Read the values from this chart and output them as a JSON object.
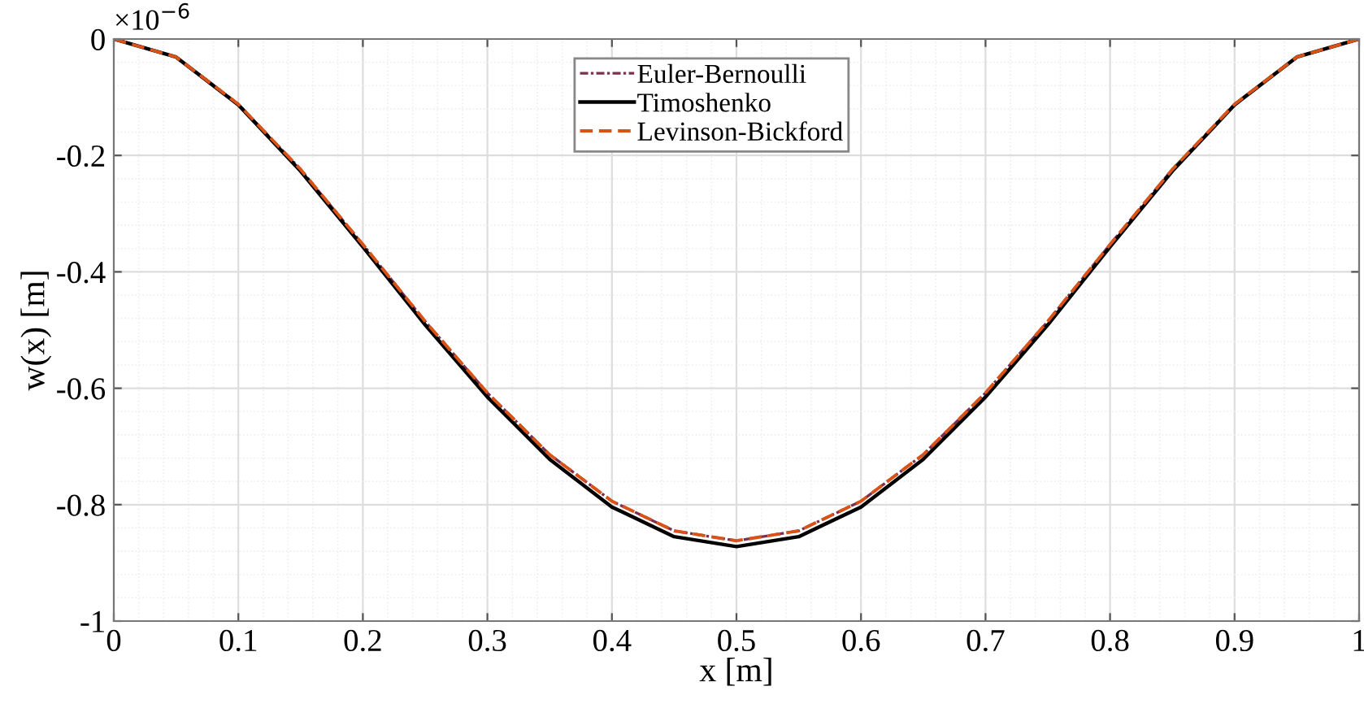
{
  "chart_data": {
    "type": "line",
    "xlabel": "x [m]",
    "ylabel": "w(x) [m]",
    "annotations": [
      "×10$^{−6}$"
    ],
    "x": [
      0,
      0.05,
      0.1,
      0.15,
      0.2,
      0.25,
      0.3,
      0.35,
      0.4,
      0.45,
      0.5,
      0.55,
      0.6,
      0.65,
      0.7,
      0.75,
      0.8,
      0.85,
      0.9,
      0.95,
      1
    ],
    "series": [
      {
        "name": "Euler-Bernoulli",
        "color": "#7e2f4e",
        "line_style": "dashdot",
        "values": [
          0,
          -0.031,
          -0.112,
          -0.224,
          -0.353,
          -0.485,
          -0.608,
          -0.714,
          -0.794,
          -0.845,
          -0.862,
          -0.845,
          -0.794,
          -0.714,
          -0.608,
          -0.485,
          -0.353,
          -0.224,
          -0.112,
          -0.031,
          0
        ]
      },
      {
        "name": "Timoshenko",
        "color": "#000000",
        "line_style": "solid",
        "values": [
          0,
          -0.031,
          -0.113,
          -0.227,
          -0.357,
          -0.491,
          -0.615,
          -0.722,
          -0.804,
          -0.855,
          -0.872,
          -0.855,
          -0.804,
          -0.722,
          -0.615,
          -0.491,
          -0.357,
          -0.227,
          -0.113,
          -0.031,
          0
        ]
      },
      {
        "name": "Levinson-Bickford",
        "color": "#d95319",
        "line_style": "dashed",
        "values": [
          0,
          -0.031,
          -0.112,
          -0.224,
          -0.353,
          -0.485,
          -0.608,
          -0.714,
          -0.794,
          -0.845,
          -0.862,
          -0.845,
          -0.794,
          -0.714,
          -0.608,
          -0.485,
          -0.353,
          -0.224,
          -0.112,
          -0.031,
          0
        ]
      }
    ],
    "xlim": [
      0,
      1
    ],
    "xticks": [
      0,
      0.1,
      0.2,
      0.3,
      0.4,
      0.5,
      0.6,
      0.7,
      0.8,
      0.9,
      1
    ],
    "ylim": [
      -1,
      0
    ],
    "yticks": [
      -1,
      {
        "value": -0.8,
        "label": "-0.8"
      },
      {
        "value": -0.6,
        "label": "-0.6"
      },
      {
        "value": -0.4,
        "label": "-0.4"
      },
      {
        "value": -0.2,
        "label": "-0.2"
      },
      0
    ],
    "grid": true,
    "legend": "top"
  }
}
